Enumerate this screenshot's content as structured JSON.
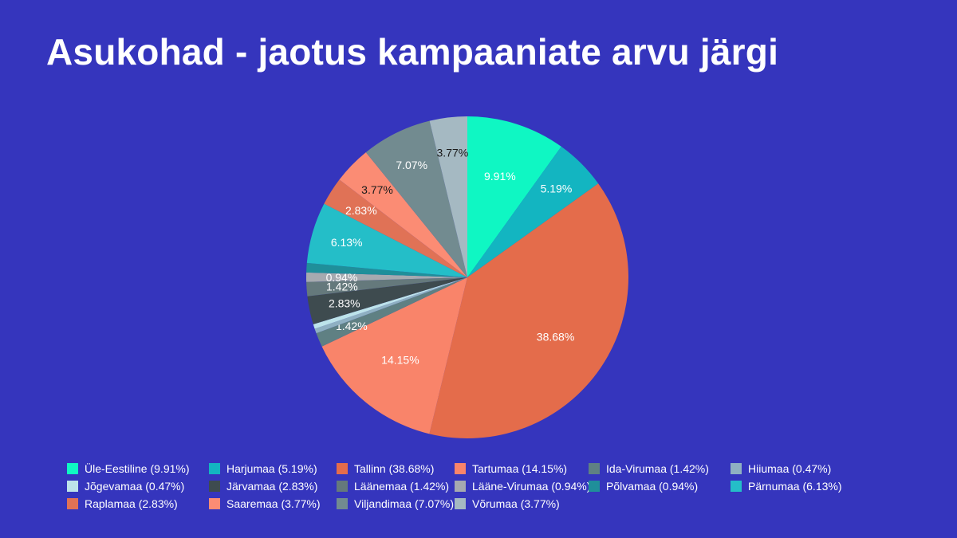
{
  "title": "Asukohad - jaotus kampaaniate arvu järgi",
  "chart_data": {
    "type": "pie",
    "title": "Asukohad - jaotus kampaaniate arvu järgi",
    "legend_position": "bottom",
    "slices": [
      {
        "name": "Üle-Eestiline",
        "value": 9.91,
        "label": "9.91%",
        "legend": "Üle-Eestiline (9.91%)",
        "color": "#0ff7c3",
        "label_color": "#ffffff"
      },
      {
        "name": "Harjumaa",
        "value": 5.19,
        "label": "5.19%",
        "legend": "Harjumaa (5.19%)",
        "color": "#13b5c1",
        "label_color": "#ffffff"
      },
      {
        "name": "Tallinn",
        "value": 38.68,
        "label": "38.68%",
        "legend": "Tallinn (38.68%)",
        "color": "#e46c4b",
        "label_color": "#ffffff"
      },
      {
        "name": "Tartumaa",
        "value": 14.15,
        "label": "14.15%",
        "legend": "Tartumaa (14.15%)",
        "color": "#f9846a",
        "label_color": "#ffffff"
      },
      {
        "name": "Ida-Virumaa",
        "value": 1.42,
        "label": "1.42%",
        "legend": "Ida-Virumaa (1.42%)",
        "color": "#5f8083",
        "label_color": "#ffffff"
      },
      {
        "name": "Hiiumaa",
        "value": 0.47,
        "label": "",
        "legend": "Hiiumaa (0.47%)",
        "color": "#8fb0c2",
        "label_color": "#ffffff"
      },
      {
        "name": "Jõgevamaa",
        "value": 0.47,
        "label": "",
        "legend": "Jõgevamaa (0.47%)",
        "color": "#bde3ea",
        "label_color": "#ffffff"
      },
      {
        "name": "Järvamaa",
        "value": 2.83,
        "label": "2.83%",
        "legend": "Järvamaa (2.83%)",
        "color": "#3e4b4f",
        "label_color": "#ffffff"
      },
      {
        "name": "Läänemaa",
        "value": 1.42,
        "label": "1.42%",
        "legend": "Läänemaa (1.42%)",
        "color": "#65797c",
        "label_color": "#ffffff"
      },
      {
        "name": "Lääne-Virumaa",
        "value": 0.94,
        "label": "0.94%",
        "legend": "Lääne-Virumaa (0.94%)",
        "color": "#a6aab0",
        "label_color": "#ffffff"
      },
      {
        "name": "Põlvamaa",
        "value": 0.94,
        "label": "",
        "legend": "Põlvamaa (0.94%)",
        "color": "#1f8f9a",
        "label_color": "#ffffff"
      },
      {
        "name": "Pärnumaa",
        "value": 6.13,
        "label": "6.13%",
        "legend": "Pärnumaa (6.13%)",
        "color": "#24bec8",
        "label_color": "#ffffff"
      },
      {
        "name": "Raplamaa",
        "value": 2.83,
        "label": "2.83%",
        "legend": "Raplamaa (2.83%)",
        "color": "#e07256",
        "label_color": "#ffffff"
      },
      {
        "name": "Saaremaa",
        "value": 3.77,
        "label": "3.77%",
        "legend": "Saaremaa (3.77%)",
        "color": "#fb8c74",
        "label_color": "#1a1a1a"
      },
      {
        "name": "Viljandimaa",
        "value": 7.07,
        "label": "7.07%",
        "legend": "Viljandimaa (7.07%)",
        "color": "#728b90",
        "label_color": "#ffffff"
      },
      {
        "name": "Võrumaa",
        "value": 3.77,
        "label": "3.77%",
        "legend": "Võrumaa (3.77%)",
        "color": "#a5b9c2",
        "label_color": "#1a1a1a"
      }
    ]
  }
}
